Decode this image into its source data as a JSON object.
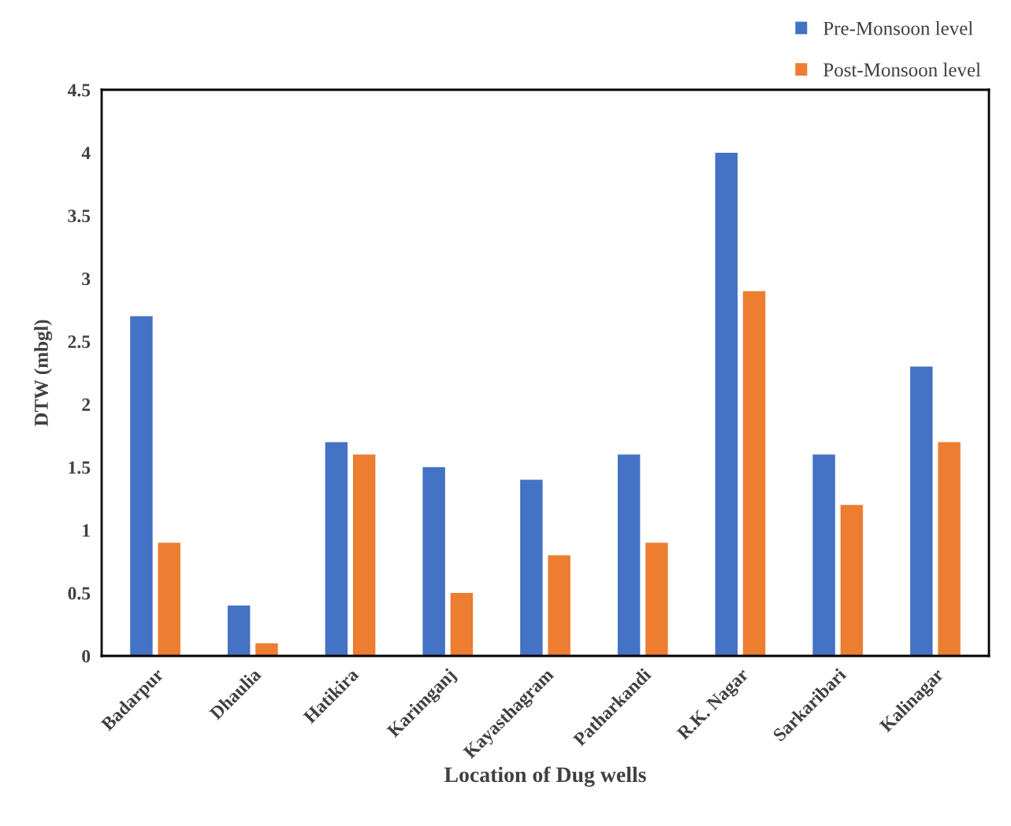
{
  "chart_data": {
    "type": "bar",
    "xlabel": "Location of Dug wells",
    "ylabel": "DTW (mbgl)",
    "categories": [
      "Badarpur",
      "Dhaulia",
      "Hatikira",
      "Karimganj",
      "Kayasthagram",
      "Patharkandi",
      "R.K. Nagar",
      "Sarkaribari",
      "Kalinagar"
    ],
    "series": [
      {
        "name": "Pre-Monsoon level",
        "color": "#4472c4",
        "values": [
          2.7,
          0.4,
          1.7,
          1.5,
          1.4,
          1.6,
          4.0,
          1.6,
          2.3
        ]
      },
      {
        "name": "Post-Monsoon level",
        "color": "#ed7d31",
        "values": [
          0.9,
          0.1,
          1.6,
          0.5,
          0.8,
          0.9,
          2.9,
          1.2,
          1.7
        ]
      }
    ],
    "ylim": [
      0,
      4.5
    ],
    "yticks": [
      0,
      0.5,
      1,
      1.5,
      2,
      2.5,
      3,
      3.5,
      4,
      4.5
    ],
    "grid": false,
    "legend": "top right"
  }
}
